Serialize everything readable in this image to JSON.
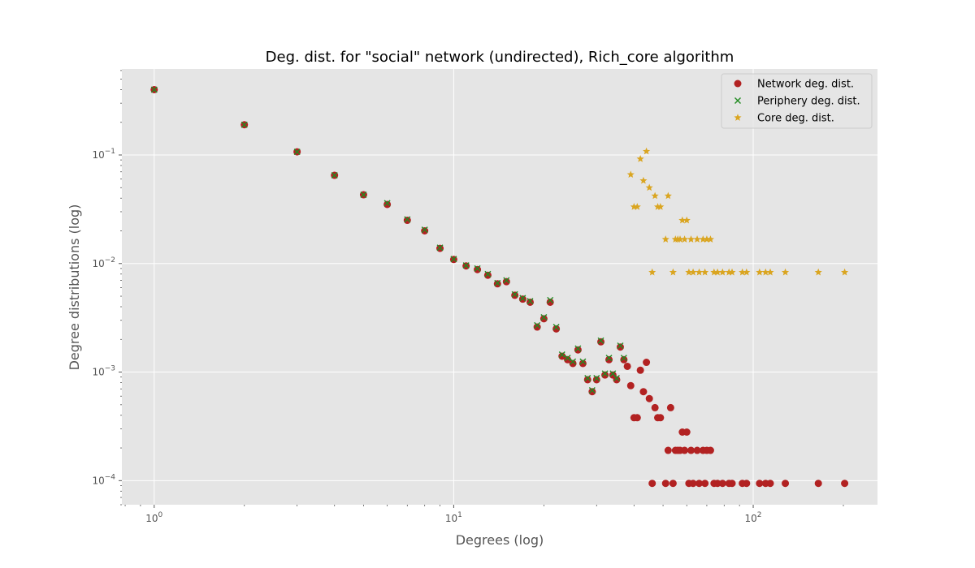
{
  "chart_data": {
    "type": "scatter",
    "title": "Deg. dist. for \"social\" network (undirected), Rich_core algorithm",
    "xlabel": "Degrees (log)",
    "ylabel": "Degree distributions (log)",
    "xscale": "log",
    "yscale": "log",
    "xlim": [
      0.78,
      260
    ],
    "ylim": [
      6e-05,
      0.62
    ],
    "grid": true,
    "legend_position": "top-right",
    "x_ticks": [
      {
        "value": 1,
        "base": "10",
        "exp": "0"
      },
      {
        "value": 10,
        "base": "10",
        "exp": "1"
      },
      {
        "value": 100,
        "base": "10",
        "exp": "2"
      }
    ],
    "y_ticks": [
      {
        "value": 0.0001,
        "base": "10",
        "exp": "−4"
      },
      {
        "value": 0.001,
        "base": "10",
        "exp": "−3"
      },
      {
        "value": 0.01,
        "base": "10",
        "exp": "−2"
      },
      {
        "value": 0.1,
        "base": "10",
        "exp": "−1"
      }
    ],
    "series": [
      {
        "name": "Network deg. dist.",
        "marker": "circle",
        "color": "#b22222",
        "points": [
          [
            1,
            0.4
          ],
          [
            2,
            0.19
          ],
          [
            3,
            0.107
          ],
          [
            4,
            0.065
          ],
          [
            5,
            0.043
          ],
          [
            6,
            0.035
          ],
          [
            7,
            0.025
          ],
          [
            8,
            0.02
          ],
          [
            9,
            0.0138
          ],
          [
            10,
            0.0109
          ],
          [
            11,
            0.0095
          ],
          [
            12,
            0.0088
          ],
          [
            13,
            0.0078
          ],
          [
            14,
            0.0065
          ],
          [
            15,
            0.0068
          ],
          [
            16,
            0.0051
          ],
          [
            17,
            0.0047
          ],
          [
            18,
            0.0044
          ],
          [
            19,
            0.0026
          ],
          [
            20,
            0.0031
          ],
          [
            21,
            0.0044
          ],
          [
            22,
            0.0025
          ],
          [
            23,
            0.0014
          ],
          [
            24,
            0.0013
          ],
          [
            25,
            0.0012
          ],
          [
            26,
            0.0016
          ],
          [
            27,
            0.0012
          ],
          [
            28,
            0.00085
          ],
          [
            29,
            0.00066
          ],
          [
            30,
            0.00085
          ],
          [
            31,
            0.0019
          ],
          [
            32,
            0.00094
          ],
          [
            33,
            0.0013
          ],
          [
            34,
            0.00094
          ],
          [
            35,
            0.00085
          ],
          [
            36,
            0.0017
          ],
          [
            37,
            0.0013
          ],
          [
            38,
            0.00113
          ],
          [
            39,
            0.00075
          ],
          [
            40,
            0.00038
          ],
          [
            41,
            0.00038
          ],
          [
            42,
            0.00104
          ],
          [
            43,
            0.00066
          ],
          [
            44,
            0.00123
          ],
          [
            45,
            0.00057
          ],
          [
            47,
            0.00047
          ],
          [
            48,
            0.00038
          ],
          [
            49,
            0.00038
          ],
          [
            52,
            0.00019
          ],
          [
            53,
            0.00047
          ],
          [
            55,
            0.00019
          ],
          [
            56,
            0.00019
          ],
          [
            57,
            0.00019
          ],
          [
            58,
            0.00028
          ],
          [
            59,
            0.00019
          ],
          [
            60,
            0.00028
          ],
          [
            62,
            0.00019
          ],
          [
            65,
            0.00019
          ],
          [
            68,
            0.00019
          ],
          [
            70,
            0.00019
          ],
          [
            72,
            0.00019
          ],
          [
            46,
            9.43e-05
          ],
          [
            51,
            9.43e-05
          ],
          [
            54,
            9.43e-05
          ],
          [
            61,
            9.43e-05
          ],
          [
            63,
            9.43e-05
          ],
          [
            66,
            9.43e-05
          ],
          [
            69,
            9.43e-05
          ],
          [
            74,
            9.43e-05
          ],
          [
            76,
            9.43e-05
          ],
          [
            79,
            9.43e-05
          ],
          [
            83,
            9.43e-05
          ],
          [
            85,
            9.43e-05
          ],
          [
            92,
            9.43e-05
          ],
          [
            95,
            9.43e-05
          ],
          [
            105,
            9.43e-05
          ],
          [
            110,
            9.43e-05
          ],
          [
            114,
            9.43e-05
          ],
          [
            128,
            9.43e-05
          ],
          [
            165,
            9.43e-05
          ],
          [
            202,
            9.43e-05
          ]
        ]
      },
      {
        "name": "Periphery deg. dist.",
        "marker": "x",
        "color": "#228b22",
        "points": [
          [
            1,
            0.4
          ],
          [
            2,
            0.19
          ],
          [
            3,
            0.107
          ],
          [
            4,
            0.065
          ],
          [
            5,
            0.043
          ],
          [
            6,
            0.036
          ],
          [
            7,
            0.0255
          ],
          [
            8,
            0.0205
          ],
          [
            9,
            0.014
          ],
          [
            10,
            0.011
          ],
          [
            11,
            0.0096
          ],
          [
            12,
            0.009
          ],
          [
            13,
            0.008
          ],
          [
            14,
            0.0066
          ],
          [
            15,
            0.007
          ],
          [
            16,
            0.0052
          ],
          [
            17,
            0.0048
          ],
          [
            18,
            0.0045
          ],
          [
            19,
            0.0027
          ],
          [
            20,
            0.0032
          ],
          [
            21,
            0.0046
          ],
          [
            22,
            0.0026
          ],
          [
            23,
            0.00145
          ],
          [
            24,
            0.00135
          ],
          [
            25,
            0.00125
          ],
          [
            26,
            0.00165
          ],
          [
            27,
            0.00125
          ],
          [
            28,
            0.00088
          ],
          [
            29,
            0.00068
          ],
          [
            30,
            0.00088
          ],
          [
            31,
            0.00195
          ],
          [
            32,
            0.00097
          ],
          [
            33,
            0.00135
          ],
          [
            34,
            0.00097
          ],
          [
            35,
            0.00088
          ],
          [
            36,
            0.00175
          ],
          [
            37,
            0.00135
          ]
        ]
      },
      {
        "name": "Core deg. dist.",
        "marker": "star",
        "color": "#daa520",
        "points": [
          [
            39,
            0.066
          ],
          [
            40,
            0.0333
          ],
          [
            41,
            0.0333
          ],
          [
            42,
            0.092
          ],
          [
            43,
            0.058
          ],
          [
            44,
            0.108
          ],
          [
            45,
            0.05
          ],
          [
            47,
            0.042
          ],
          [
            48,
            0.0333
          ],
          [
            49,
            0.0333
          ],
          [
            52,
            0.042
          ],
          [
            51,
            0.0167
          ],
          [
            55,
            0.0167
          ],
          [
            56,
            0.0167
          ],
          [
            57,
            0.0167
          ],
          [
            58,
            0.025
          ],
          [
            59,
            0.0167
          ],
          [
            60,
            0.025
          ],
          [
            62,
            0.0167
          ],
          [
            65,
            0.0167
          ],
          [
            68,
            0.0167
          ],
          [
            70,
            0.0167
          ],
          [
            72,
            0.0167
          ],
          [
            46,
            0.0083
          ],
          [
            54,
            0.0083
          ],
          [
            61,
            0.0083
          ],
          [
            63,
            0.0083
          ],
          [
            66,
            0.0083
          ],
          [
            69,
            0.0083
          ],
          [
            74,
            0.0083
          ],
          [
            76,
            0.0083
          ],
          [
            79,
            0.0083
          ],
          [
            83,
            0.0083
          ],
          [
            85,
            0.0083
          ],
          [
            92,
            0.0083
          ],
          [
            95,
            0.0083
          ],
          [
            105,
            0.0083
          ],
          [
            110,
            0.0083
          ],
          [
            114,
            0.0083
          ],
          [
            128,
            0.0083
          ],
          [
            165,
            0.0083
          ],
          [
            202,
            0.0083
          ]
        ]
      }
    ]
  }
}
